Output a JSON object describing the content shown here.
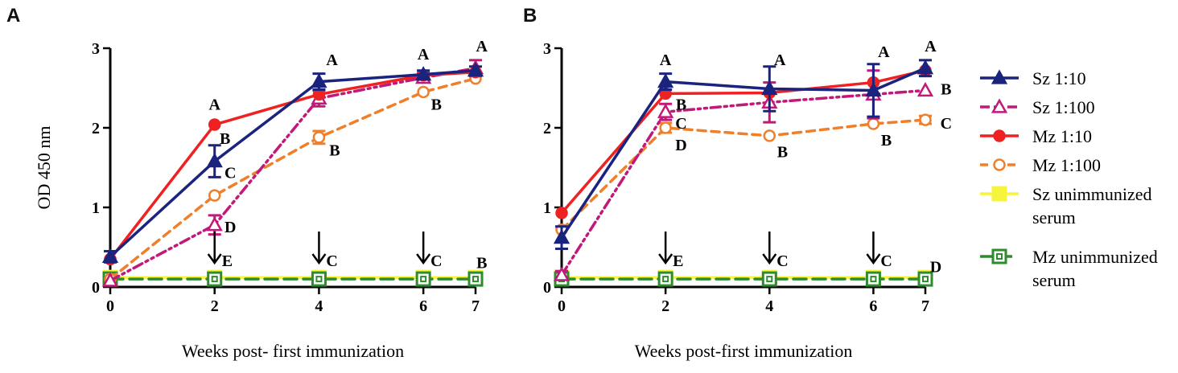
{
  "figure": {
    "panel_labels": [
      "A",
      "B"
    ]
  },
  "legend": {
    "entries": [
      {
        "series": "sz10",
        "lines": [
          "Sz 1:10"
        ]
      },
      {
        "series": "sz100",
        "lines": [
          "Sz 1:100"
        ]
      },
      {
        "series": "mz10",
        "lines": [
          "Mz 1:10"
        ]
      },
      {
        "series": "mz100",
        "lines": [
          "Mz 1:100"
        ]
      },
      {
        "series": "szun",
        "lines": [
          "Sz unimmunized",
          "serum"
        ]
      },
      {
        "series": "mzun",
        "lines": [
          "Mz unimmunized",
          "serum"
        ]
      }
    ]
  },
  "styles": {
    "sz10": {
      "color": "#1a237e",
      "dash": "",
      "marker": "triangle",
      "filled": true
    },
    "sz100": {
      "color": "#c2187a",
      "dash": "12,5,3,5,3,5",
      "marker": "triangle",
      "filled": false
    },
    "mz10": {
      "color": "#ee2222",
      "dash": "",
      "marker": "circle",
      "filled": true
    },
    "mz100": {
      "color": "#f07f2a",
      "dash": "10,7",
      "marker": "circle",
      "filled": false
    },
    "szun": {
      "color": "#f7f53b",
      "dash": "",
      "marker": "square",
      "filled": true
    },
    "mzun": {
      "color": "#2e8b2e",
      "dash": "16,8",
      "marker": "square",
      "filled": false
    }
  },
  "chart_data": [
    {
      "panel": "A",
      "type": "line",
      "xlabel": "Weeks post- first immunization",
      "ylabel": "OD 450 nm",
      "x": [
        0,
        2,
        4,
        6,
        7
      ],
      "xticks": [
        "0",
        "2",
        "4",
        "6",
        "7"
      ],
      "yticks": [
        "0",
        "1",
        "2",
        "3"
      ],
      "xlim": [
        0,
        7
      ],
      "ylim": [
        0,
        3
      ],
      "series": [
        {
          "id": "szun",
          "name": "Sz unimmunized serum",
          "values": [
            0.12,
            0.12,
            0.12,
            0.12,
            0.12
          ],
          "err": [
            0,
            0,
            0,
            0,
            0
          ]
        },
        {
          "id": "mzun",
          "name": "Mz unimmunized serum",
          "values": [
            0.1,
            0.1,
            0.1,
            0.1,
            0.1
          ],
          "err": [
            0,
            0,
            0,
            0,
            0
          ]
        },
        {
          "id": "mz100",
          "name": "Mz 1:100",
          "values": [
            0.1,
            1.15,
            1.88,
            2.45,
            2.62
          ],
          "err": [
            0,
            0,
            0.08,
            0,
            0
          ]
        },
        {
          "id": "sz100",
          "name": "Sz 1:100",
          "values": [
            0.08,
            0.78,
            2.37,
            2.63,
            2.75
          ],
          "err": [
            0,
            0.12,
            0.1,
            0.06,
            0.1
          ]
        },
        {
          "id": "mz10",
          "name": "Mz 1:10",
          "values": [
            0.35,
            2.04,
            2.42,
            2.66,
            2.7
          ],
          "err": [
            0,
            0,
            0,
            0,
            0
          ]
        },
        {
          "id": "sz10",
          "name": "Sz 1:10",
          "values": [
            0.38,
            1.58,
            2.58,
            2.67,
            2.72
          ],
          "err": [
            0.07,
            0.2,
            0.1,
            0.05,
            0.05
          ]
        }
      ],
      "annotations": [
        {
          "x": 2,
          "y": 2.3,
          "text": "A"
        },
        {
          "x": 2.2,
          "y": 1.87,
          "text": "B"
        },
        {
          "x": 2.3,
          "y": 1.44,
          "text": "C"
        },
        {
          "x": 2.3,
          "y": 0.76,
          "text": "D"
        },
        {
          "x": 4.25,
          "y": 2.86,
          "text": "A"
        },
        {
          "x": 4.3,
          "y": 1.72,
          "text": "B"
        },
        {
          "x": 6,
          "y": 2.93,
          "text": "A"
        },
        {
          "x": 6.25,
          "y": 2.3,
          "text": "B"
        },
        {
          "x": 7.12,
          "y": 3.03,
          "text": "A"
        },
        {
          "x": 7.12,
          "y": 0.31,
          "text": "B"
        }
      ],
      "arrows": [
        {
          "x": 2,
          "label": "E"
        },
        {
          "x": 4,
          "label": "C"
        },
        {
          "x": 6,
          "label": "C"
        }
      ]
    },
    {
      "panel": "B",
      "type": "line",
      "xlabel": "Weeks post-first  immunization",
      "ylabel": "",
      "x": [
        0,
        2,
        4,
        6,
        7
      ],
      "xticks": [
        "0",
        "2",
        "4",
        "6",
        "7"
      ],
      "yticks": [
        "0",
        "1",
        "2",
        "3"
      ],
      "xlim": [
        0,
        7
      ],
      "ylim": [
        0,
        3
      ],
      "series": [
        {
          "id": "szun",
          "name": "Sz unimmunized serum",
          "values": [
            0.12,
            0.12,
            0.12,
            0.12,
            0.12
          ],
          "err": [
            0,
            0,
            0,
            0,
            0
          ]
        },
        {
          "id": "mzun",
          "name": "Mz unimmunized serum",
          "values": [
            0.1,
            0.1,
            0.1,
            0.1,
            0.1
          ],
          "err": [
            0,
            0,
            0,
            0,
            0
          ]
        },
        {
          "id": "mz100",
          "name": "Mz 1:100",
          "values": [
            0.72,
            2.0,
            1.9,
            2.05,
            2.1
          ],
          "err": [
            0,
            0.06,
            0,
            0,
            0.05
          ]
        },
        {
          "id": "sz100",
          "name": "Sz 1:100",
          "values": [
            0.15,
            2.2,
            2.32,
            2.42,
            2.47
          ],
          "err": [
            0.05,
            0.1,
            0.25,
            0.3,
            0
          ]
        },
        {
          "id": "mz10",
          "name": "Mz 1:10",
          "values": [
            0.93,
            2.43,
            2.44,
            2.57,
            2.72
          ],
          "err": [
            0,
            0,
            0,
            0,
            0
          ]
        },
        {
          "id": "sz10",
          "name": "Sz 1:10",
          "values": [
            0.62,
            2.58,
            2.49,
            2.47,
            2.75
          ],
          "err": [
            0.14,
            0.1,
            0.28,
            0.33,
            0.1
          ]
        }
      ],
      "annotations": [
        {
          "x": 2,
          "y": 2.86,
          "text": "A"
        },
        {
          "x": 2.3,
          "y": 2.3,
          "text": "B"
        },
        {
          "x": 2.3,
          "y": 2.06,
          "text": "C"
        },
        {
          "x": 2.3,
          "y": 1.79,
          "text": "D"
        },
        {
          "x": 4.2,
          "y": 2.86,
          "text": "A"
        },
        {
          "x": 4.25,
          "y": 1.7,
          "text": "B"
        },
        {
          "x": 6.2,
          "y": 2.96,
          "text": "A"
        },
        {
          "x": 6.25,
          "y": 1.85,
          "text": "B"
        },
        {
          "x": 7.1,
          "y": 3.03,
          "text": "A"
        },
        {
          "x": 7.4,
          "y": 2.49,
          "text": "B"
        },
        {
          "x": 7.4,
          "y": 2.06,
          "text": "C"
        },
        {
          "x": 7.2,
          "y": 0.26,
          "text": "D"
        }
      ],
      "arrows": [
        {
          "x": 2,
          "label": "E"
        },
        {
          "x": 4,
          "label": "C"
        },
        {
          "x": 6,
          "label": "C"
        }
      ]
    }
  ]
}
